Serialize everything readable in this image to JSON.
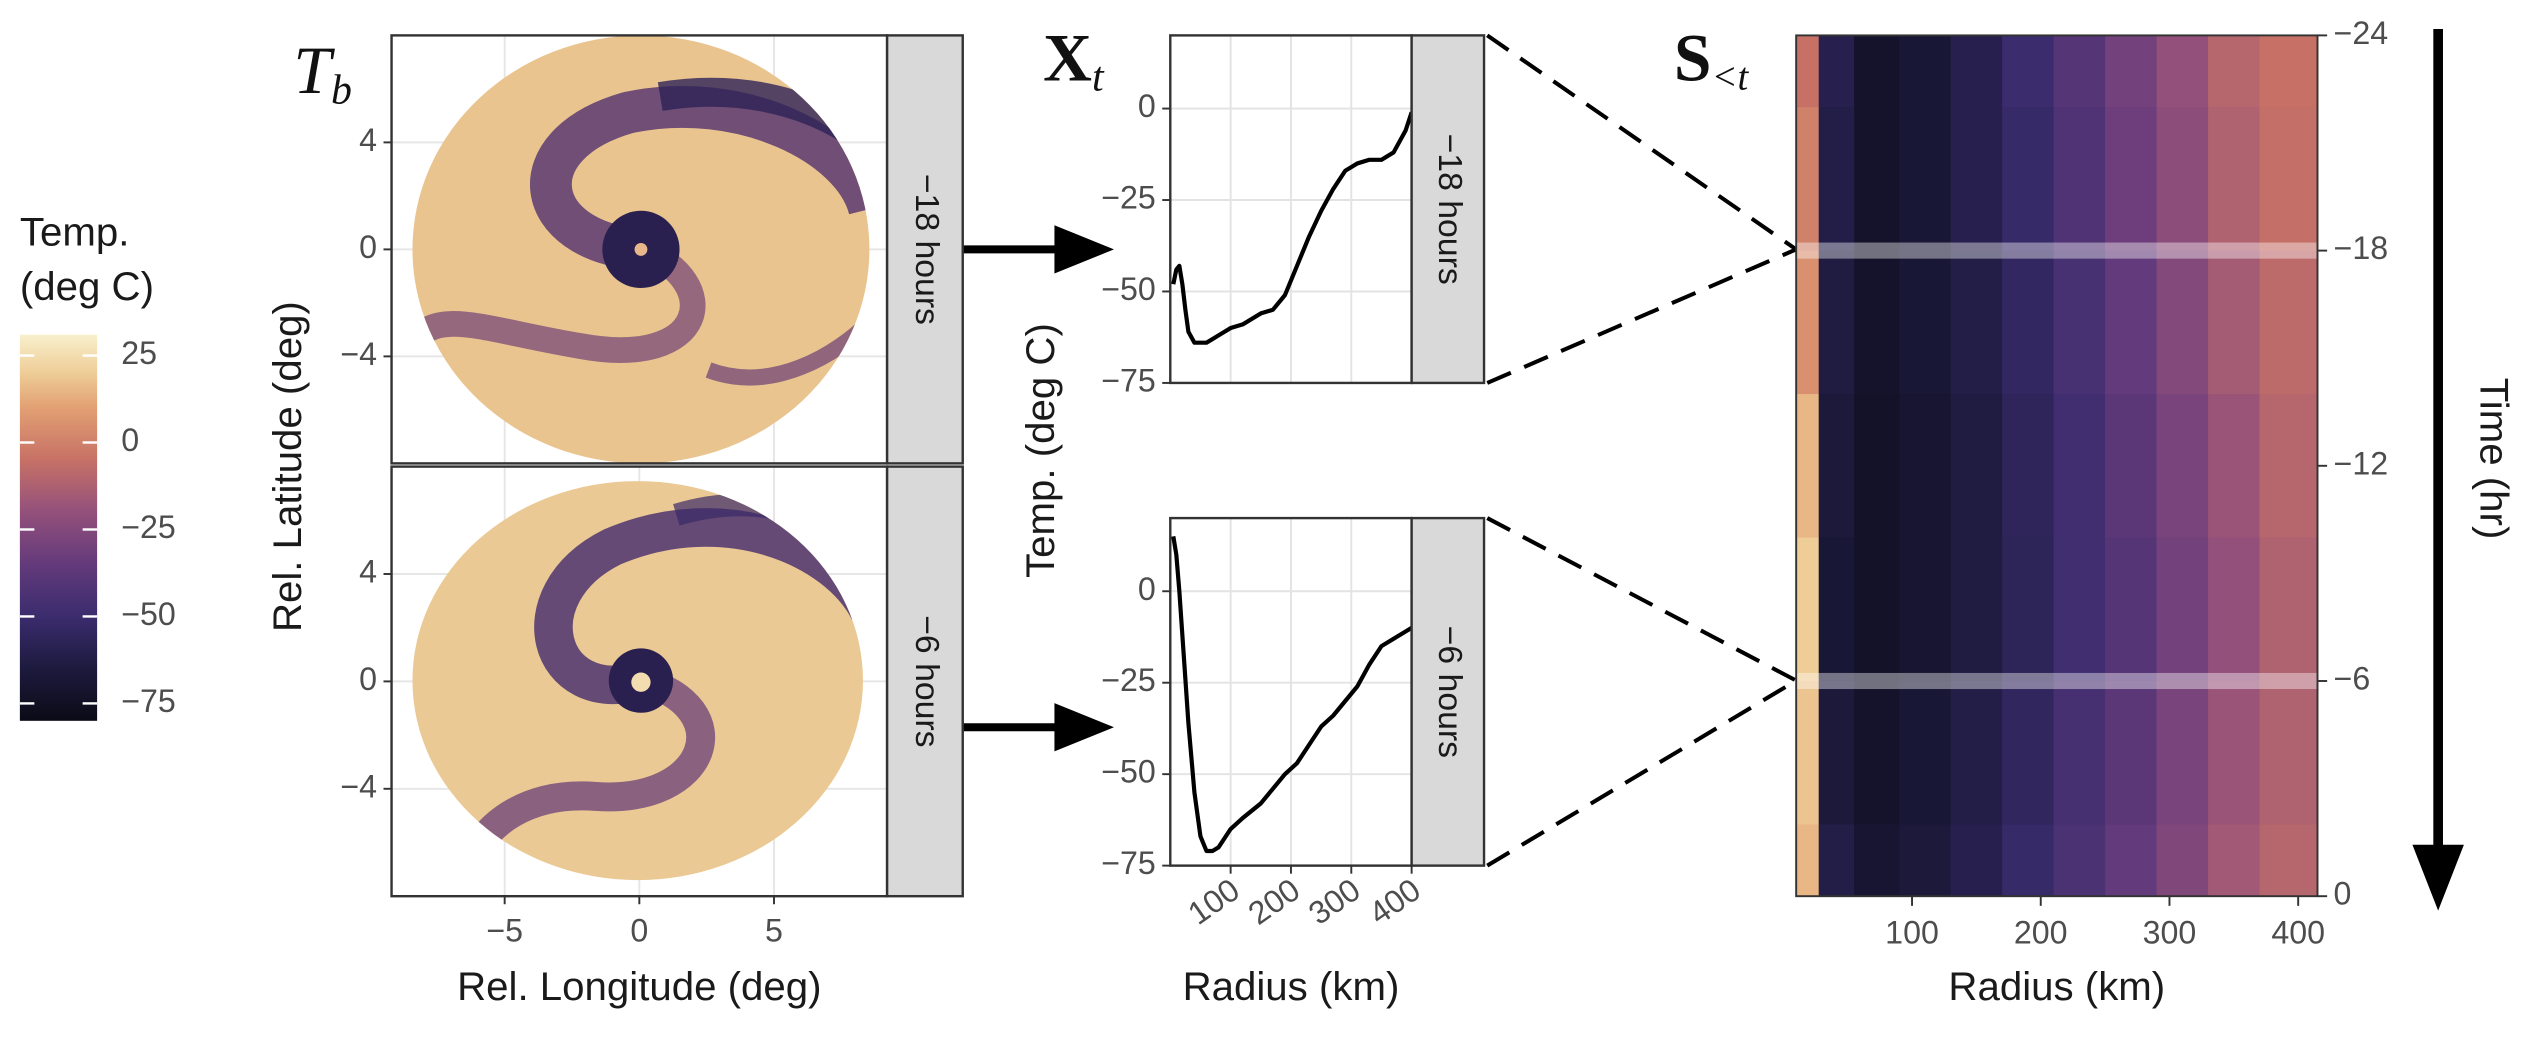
{
  "chart_data": [
    {
      "type": "image-facets",
      "title": "T",
      "title_sub": "b",
      "x_label": "Rel. Longitude (deg)",
      "y_label": "Rel. Latitude (deg)",
      "facets": [
        "−18 hours",
        "−6 hours"
      ],
      "xlim": [
        -9.2,
        9.2
      ],
      "ylim": [
        -8,
        8
      ],
      "xticks": [
        {
          "value": -5,
          "label": "−5"
        },
        0,
        5
      ],
      "yticks": [
        {
          "value": -4,
          "label": "−4"
        },
        0,
        4
      ],
      "grid": true,
      "legend": {
        "title": [
          "Temp.",
          "(deg C)"
        ],
        "lim": [
          -80,
          31
        ],
        "ticks": [
          25,
          0,
          {
            "value": -25,
            "label": "−25"
          },
          {
            "value": -50,
            "label": "−50"
          },
          {
            "value": -75,
            "label": "−75"
          }
        ],
        "colorscale": [
          {
            "value": -80,
            "color": "#0b0b16"
          },
          {
            "value": -65,
            "color": "#1d1a3e"
          },
          {
            "value": -50,
            "color": "#3b2c6e"
          },
          {
            "value": -35,
            "color": "#633a7b"
          },
          {
            "value": -20,
            "color": "#93507b"
          },
          {
            "value": -5,
            "color": "#c77166"
          },
          {
            "value": 10,
            "color": "#e2a073"
          },
          {
            "value": 20,
            "color": "#eecd97"
          },
          {
            "value": 31,
            "color": "#f8f0cd"
          }
        ]
      }
    },
    {
      "type": "line-facets",
      "title": "X",
      "title_sub": "t",
      "x_label": "Radius (km)",
      "y_label": "Temp. (deg C)",
      "facets": [
        "−18 hours",
        "−6 hours"
      ],
      "x": [
        5,
        10,
        15,
        20,
        25,
        30,
        40,
        50,
        60,
        70,
        80,
        100,
        120,
        150,
        170,
        190,
        210,
        230,
        250,
        270,
        290,
        310,
        330,
        350,
        370,
        390,
        400
      ],
      "series": [
        {
          "name": "−18 hours",
          "color": "#000000",
          "values": [
            -48,
            -44,
            -43,
            -48,
            -55,
            -61,
            -64,
            -64,
            -64,
            -63,
            -62,
            -60,
            -59,
            -56,
            -55,
            -51,
            -43,
            -35,
            -28,
            -22,
            -17,
            -15,
            -14,
            -14,
            -12,
            -6,
            -1
          ]
        },
        {
          "name": "−6 hours",
          "color": "#000000",
          "values": [
            15,
            10,
            0,
            -12,
            -24,
            -36,
            -55,
            -67,
            -71,
            -71,
            -70,
            -65,
            -62,
            -58,
            -54,
            -50,
            -47,
            -42,
            -37,
            -34,
            -30,
            -26,
            -20,
            -15,
            -13,
            -11,
            -10
          ]
        }
      ],
      "xlim": [
        0,
        400
      ],
      "ylim": [
        -75,
        20
      ],
      "xticks": [
        100,
        200,
        300,
        400
      ],
      "yticks": [
        {
          "value": -75,
          "label": "−75"
        },
        {
          "value": -50,
          "label": "−50"
        },
        {
          "value": -25,
          "label": "−25"
        },
        0
      ],
      "grid": true
    },
    {
      "type": "heatmap",
      "title": "S",
      "title_sub": "<t",
      "x_label": "Radius (km)",
      "y_label": "Time (hr)",
      "x": [
        15,
        40,
        70,
        110,
        150,
        190,
        230,
        270,
        310,
        350,
        390
      ],
      "y": [
        -24,
        -20,
        -16,
        -12,
        -8,
        -4,
        0
      ],
      "z": [
        [
          -5,
          -60,
          -72,
          -68,
          -60,
          -50,
          -40,
          -30,
          -20,
          -10,
          -5
        ],
        [
          0,
          -62,
          -72,
          -68,
          -60,
          -52,
          -42,
          -32,
          -22,
          -12,
          -6
        ],
        [
          5,
          -64,
          -72,
          -68,
          -62,
          -54,
          -45,
          -35,
          -25,
          -15,
          -8
        ],
        [
          15,
          -66,
          -73,
          -70,
          -64,
          -56,
          -48,
          -38,
          -28,
          -18,
          -10
        ],
        [
          20,
          -68,
          -73,
          -70,
          -64,
          -57,
          -48,
          -40,
          -30,
          -20,
          -12
        ],
        [
          18,
          -66,
          -72,
          -68,
          -62,
          -55,
          -46,
          -38,
          -28,
          -18,
          -12
        ],
        [
          15,
          -62,
          -70,
          -66,
          -60,
          -52,
          -44,
          -35,
          -26,
          -16,
          -10
        ]
      ],
      "xlim": [
        10,
        415
      ],
      "ylim": [
        -24,
        0
      ],
      "y_reversed": true,
      "xticks": [
        100,
        200,
        300,
        400
      ],
      "yticks": [
        {
          "value": -24,
          "label": "−24"
        },
        {
          "value": -18,
          "label": "−18"
        },
        {
          "value": -12,
          "label": "−12"
        },
        {
          "value": -6,
          "label": "−6"
        },
        0
      ],
      "highlight": [
        -18,
        -6
      ]
    }
  ]
}
